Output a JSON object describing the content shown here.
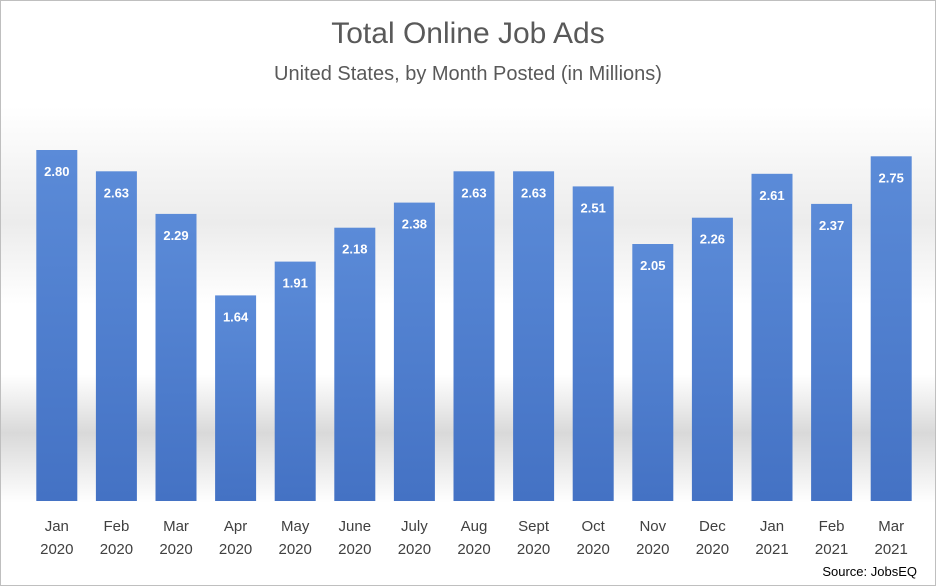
{
  "chart_data": {
    "type": "bar",
    "title": "Total Online Job Ads",
    "subtitle": "United States, by Month Posted (in Millions)",
    "categories": [
      [
        "Jan",
        "2020"
      ],
      [
        "Feb",
        "2020"
      ],
      [
        "Mar",
        "2020"
      ],
      [
        "Apr",
        "2020"
      ],
      [
        "May",
        "2020"
      ],
      [
        "June",
        "2020"
      ],
      [
        "July",
        "2020"
      ],
      [
        "Aug",
        "2020"
      ],
      [
        "Sept",
        "2020"
      ],
      [
        "Oct",
        "2020"
      ],
      [
        "Nov",
        "2020"
      ],
      [
        "Dec",
        "2020"
      ],
      [
        "Jan",
        "2021"
      ],
      [
        "Feb",
        "2021"
      ],
      [
        "Mar",
        "2021"
      ]
    ],
    "values": [
      2.8,
      2.63,
      2.29,
      1.64,
      1.91,
      2.18,
      2.38,
      2.63,
      2.63,
      2.51,
      2.05,
      2.26,
      2.61,
      2.37,
      2.75
    ],
    "value_labels": [
      "2.80",
      "2.63",
      "2.29",
      "1.64",
      "1.91",
      "2.18",
      "2.38",
      "2.63",
      "2.63",
      "2.51",
      "2.05",
      "2.26",
      "2.61",
      "2.37",
      "2.75"
    ],
    "xlabel": "",
    "ylabel": "",
    "ylim": [
      0,
      2.8
    ],
    "grid": false,
    "legend": "none",
    "colors": {
      "bar": "#4472c4",
      "bar_top": "#5b8bd8",
      "label": "#ffffff",
      "axis_text": "#404040"
    },
    "source": "Source: JobsEQ"
  }
}
